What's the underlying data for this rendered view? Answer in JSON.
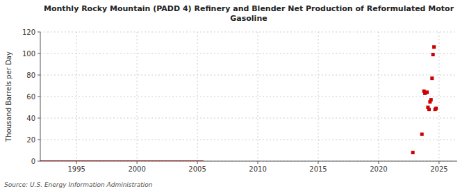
{
  "chart_data": {
    "type": "scatter",
    "title": "Monthly Rocky Mountain (PADD 4) Refinery and Blender Net Production of Reformulated Motor\nGasoline",
    "ylabel": "Thousand Barrels per Day",
    "source": "Source: U.S. Energy Information Administration",
    "xlim": [
      1992.0,
      2026.5
    ],
    "ylim": [
      0,
      120
    ],
    "xticks": [
      1995,
      2000,
      2005,
      2010,
      2015,
      2020,
      2025
    ],
    "yticks": [
      0,
      20,
      40,
      60,
      80,
      100,
      120
    ],
    "grid": true,
    "series": [
      {
        "type": "line",
        "color": "#8b0000",
        "x": [
          1992.0,
          2005.5
        ],
        "values": [
          0,
          0
        ]
      },
      {
        "type": "scatter",
        "color": "#cc0000",
        "marker": "square",
        "x": [
          2022.83,
          2023.58,
          2023.75,
          2023.83,
          2024.0,
          2024.08,
          2024.17,
          2024.25,
          2024.33,
          2024.42,
          2024.5,
          2024.58,
          2024.67,
          2024.75
        ],
        "values": [
          8,
          25,
          65,
          63,
          64,
          50,
          48,
          55,
          57,
          77,
          99,
          106,
          48,
          49
        ]
      }
    ]
  }
}
